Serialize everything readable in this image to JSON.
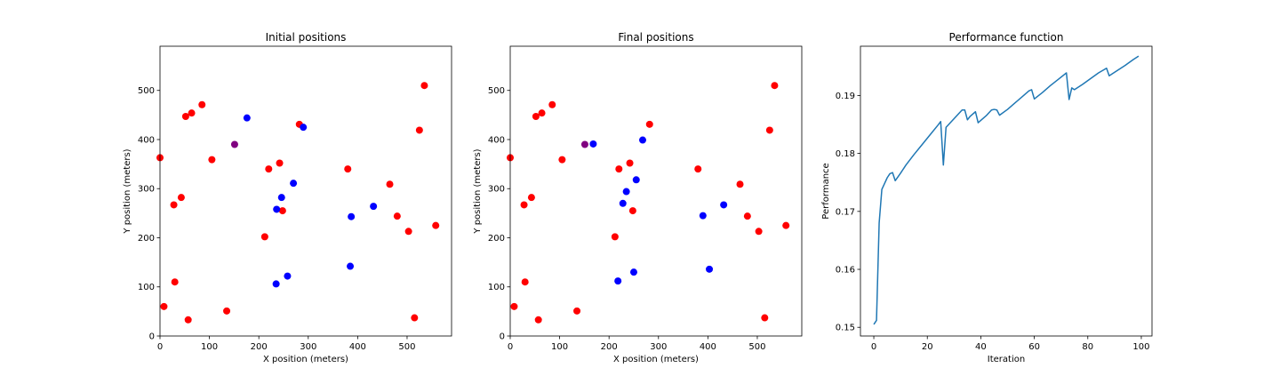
{
  "chart_data": [
    {
      "type": "scatter",
      "title": "Initial positions",
      "xlabel": "X position (meters)",
      "ylabel": "Y position (meters)",
      "xlim": [
        0,
        590
      ],
      "ylim": [
        0,
        590
      ],
      "xticks": [
        0,
        100,
        200,
        300,
        400,
        500
      ],
      "yticks": [
        0,
        100,
        200,
        300,
        400,
        500
      ],
      "grid": false,
      "colors": {
        "red": "#ff0000",
        "blue": "#0000ff",
        "purple": "#800080"
      },
      "series": [
        {
          "color_key": "red",
          "x": [
            0,
            8,
            28,
            30,
            43,
            52,
            57,
            64,
            85,
            105,
            135,
            212,
            220,
            242,
            248,
            282,
            380,
            465,
            480,
            503,
            515,
            525,
            535,
            558
          ],
          "y": [
            363,
            60,
            267,
            110,
            282,
            447,
            33,
            454,
            471,
            359,
            51,
            202,
            340,
            352,
            255,
            431,
            340,
            309,
            244,
            213,
            37,
            419,
            510,
            225
          ]
        },
        {
          "color_key": "blue",
          "x": [
            176,
            236,
            246,
            258,
            270,
            290,
            387,
            385,
            432,
            235
          ],
          "y": [
            444,
            258,
            282,
            122,
            311,
            425,
            243,
            142,
            264,
            106
          ]
        },
        {
          "color_key": "purple",
          "x": [
            151
          ],
          "y": [
            390
          ]
        }
      ]
    },
    {
      "type": "scatter",
      "title": "Final positions",
      "xlabel": "X position (meters)",
      "ylabel": "Y position (meters)",
      "xlim": [
        0,
        590
      ],
      "ylim": [
        0,
        590
      ],
      "xticks": [
        0,
        100,
        200,
        300,
        400,
        500
      ],
      "yticks": [
        0,
        100,
        200,
        300,
        400,
        500
      ],
      "grid": false,
      "colors": {
        "red": "#ff0000",
        "blue": "#0000ff",
        "purple": "#800080"
      },
      "series": [
        {
          "color_key": "red",
          "x": [
            0,
            8,
            28,
            30,
            43,
            52,
            57,
            64,
            85,
            105,
            135,
            212,
            220,
            242,
            248,
            282,
            380,
            465,
            480,
            503,
            515,
            525,
            535,
            558
          ],
          "y": [
            363,
            60,
            267,
            110,
            282,
            447,
            33,
            454,
            471,
            359,
            51,
            202,
            340,
            352,
            255,
            431,
            340,
            309,
            244,
            213,
            37,
            419,
            510,
            225
          ]
        },
        {
          "color_key": "blue",
          "x": [
            168,
            268,
            255,
            235,
            228,
            250,
            390,
            403,
            432,
            218
          ],
          "y": [
            391,
            399,
            318,
            294,
            270,
            130,
            245,
            136,
            267,
            112
          ]
        },
        {
          "color_key": "purple",
          "x": [
            151
          ],
          "y": [
            390
          ]
        }
      ]
    },
    {
      "type": "line",
      "title": "Performance function",
      "xlabel": "Iteration",
      "ylabel": "Performance",
      "xlim": [
        -5,
        104
      ],
      "ylim": [
        0.1485,
        0.1985
      ],
      "xticks": [
        0,
        20,
        40,
        60,
        80,
        100
      ],
      "yticks": [
        0.15,
        0.16,
        0.17,
        0.18,
        0.19
      ],
      "ytick_labels": [
        "0.15",
        "0.16",
        "0.17",
        "0.18",
        "0.19"
      ],
      "grid": false,
      "colors": {
        "line": "#1f77b4"
      },
      "series": [
        {
          "x": [
            0,
            1,
            2,
            3,
            4,
            5,
            6,
            7,
            8,
            10,
            12,
            15,
            18,
            21,
            24,
            25,
            26,
            27,
            30,
            33,
            34,
            35,
            36,
            38,
            39,
            42,
            44,
            45,
            46,
            47,
            50,
            53,
            56,
            58,
            59,
            60,
            63,
            66,
            69,
            72,
            73,
            74,
            75,
            78,
            81,
            84,
            87,
            88,
            91,
            94,
            97,
            99
          ],
          "y": [
            0.1505,
            0.1512,
            0.168,
            0.1738,
            0.1748,
            0.1758,
            0.1765,
            0.1767,
            0.1753,
            0.1766,
            0.178,
            0.1798,
            0.1815,
            0.1832,
            0.1849,
            0.1855,
            0.178,
            0.1845,
            0.186,
            0.1875,
            0.1875,
            0.1858,
            0.1864,
            0.1872,
            0.1853,
            0.1865,
            0.1875,
            0.1876,
            0.1875,
            0.1866,
            0.1876,
            0.1888,
            0.19,
            0.1908,
            0.191,
            0.1894,
            0.1905,
            0.1917,
            0.1928,
            0.1939,
            0.1893,
            0.1913,
            0.191,
            0.1919,
            0.1929,
            0.1939,
            0.1947,
            0.1934,
            0.1943,
            0.1952,
            0.1962,
            0.1968
          ]
        }
      ]
    }
  ]
}
